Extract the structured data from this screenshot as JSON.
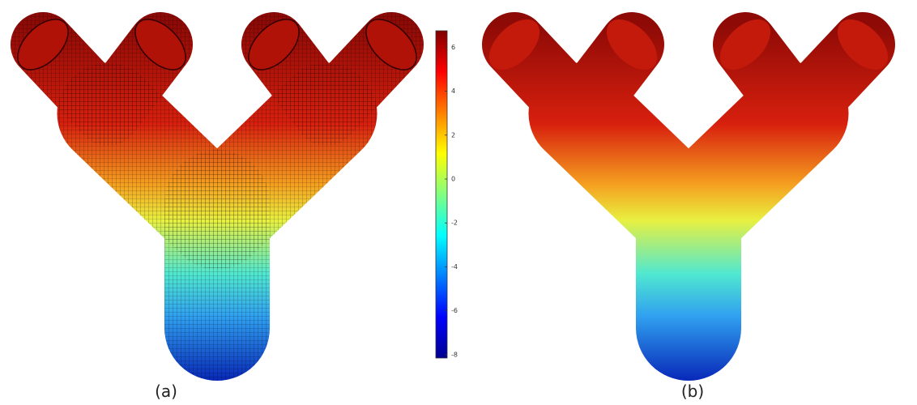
{
  "panels": [
    {
      "label": "(a)"
    },
    {
      "label": "(b)"
    }
  ],
  "colorbar": {
    "lim": [
      -8.15,
      6.75
    ],
    "ticks": [
      6,
      4,
      2,
      0,
      -2,
      -4,
      -6,
      -8
    ]
  }
}
